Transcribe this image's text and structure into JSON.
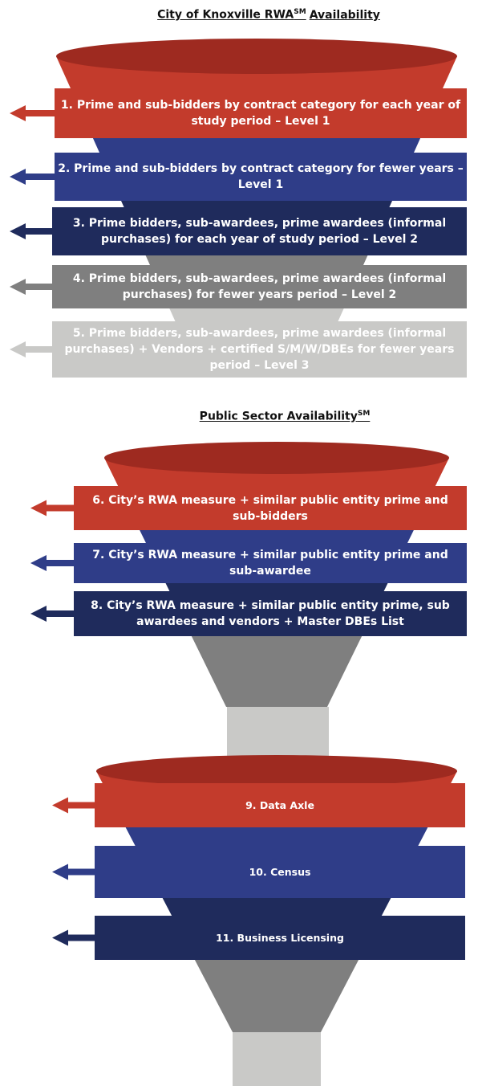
{
  "funnels": [
    {
      "title": {
        "before": "City of Knoxville RWA",
        "sup": "SM",
        "after": "Availability"
      },
      "levels": [
        {
          "label": "1. Prime and sub-bidders by contract category for each year of study period – Level 1"
        },
        {
          "label": "2. Prime and sub-bidders by contract category for fewer years – Level 1"
        },
        {
          "label": "3. Prime bidders, sub-awardees, prime awardees (informal purchases) for each year of study period – Level 2"
        },
        {
          "label": "4. Prime bidders, sub-awardees, prime awardees (informal purchases) for fewer years period – Level 2"
        },
        {
          "label": "5. Prime bidders, sub-awardees, prime awardees (informal purchases) + Vendors + certified S/M/W/DBEs for fewer years period – Level 3"
        }
      ]
    },
    {
      "title": {
        "before": "Public Sector Availability",
        "sup": "SM",
        "after": ""
      },
      "levels": [
        {
          "label": "6. City’s RWA measure + similar public entity prime and sub-bidders"
        },
        {
          "label": "7. City’s RWA measure + similar public entity prime and sub-awardee"
        },
        {
          "label": "8. City’s RWA measure + similar public entity prime, sub awardees and vendors + Master DBEs List"
        }
      ]
    },
    {
      "levels": [
        {
          "label": "9. Data Axle"
        },
        {
          "label": "10. Census"
        },
        {
          "label": "11. Business Licensing"
        }
      ]
    }
  ]
}
